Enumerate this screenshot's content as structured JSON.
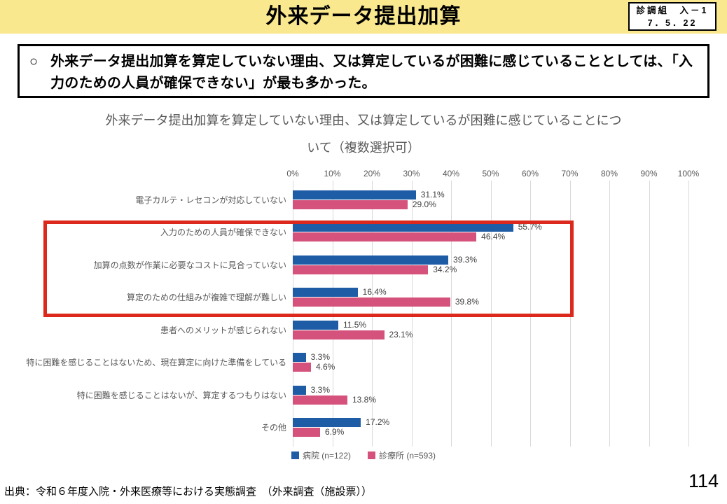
{
  "header": {
    "title": "外来データ提出加算",
    "ref_line1": "診調組　入－1",
    "ref_line2": "7．5．22"
  },
  "statement": {
    "bullet": "○",
    "text": "外来データ提出加算を算定していない理由、又は算定しているが困難に感じていることとしては、「入力のための人員が確保できない」が最も多かった。"
  },
  "chart_data": {
    "type": "bar",
    "orientation": "horizontal",
    "title_line1": "外来データ提出加算を算定していない理由、又は算定しているが困難に感じていることにつ",
    "title_line2": "いて（複数選択可）",
    "categories": [
      "電子カルテ・レセコンが対応していない",
      "入力のための人員が確保できない",
      "加算の点数が作業に必要なコストに見合っていない",
      "算定のための仕組みが複雑で理解が難しい",
      "患者へのメリットが感じられない",
      "特に困難を感じることはないため、現在算定に向けた準備をしている",
      "特に困難を感じることはないが、算定するつもりはない",
      "その他"
    ],
    "series": [
      {
        "name": "病院 (n=122)",
        "key": "hospital",
        "color": "#1F5CA6",
        "values": [
          31.1,
          55.7,
          39.3,
          16.4,
          11.5,
          3.3,
          3.3,
          17.2
        ]
      },
      {
        "name": "診療所 (n=593)",
        "key": "clinic",
        "color": "#D4527B",
        "values": [
          29.0,
          46.4,
          34.2,
          39.8,
          23.1,
          4.6,
          13.8,
          6.9
        ]
      }
    ],
    "value_suffix": "%",
    "x_ticks": [
      "0%",
      "10%",
      "20%",
      "30%",
      "40%",
      "50%",
      "60%",
      "70%",
      "80%",
      "90%",
      "100%"
    ],
    "xlim": [
      0,
      100
    ],
    "grid": true,
    "legend_position": "bottom",
    "highlighted_category_indices": [
      1,
      2,
      3
    ]
  },
  "footer": {
    "source": "出典：令和６年度入院・外来医療等における実態調査　（外来調査（施設票））",
    "page_number": "114"
  },
  "colors": {
    "header_bg": "#FAE88F",
    "hospital_blue": "#1F5CA6",
    "clinic_pink": "#D4527B",
    "highlight_red": "#DC291E",
    "gridline": "#D9D9D9",
    "text_gray": "#595959"
  }
}
